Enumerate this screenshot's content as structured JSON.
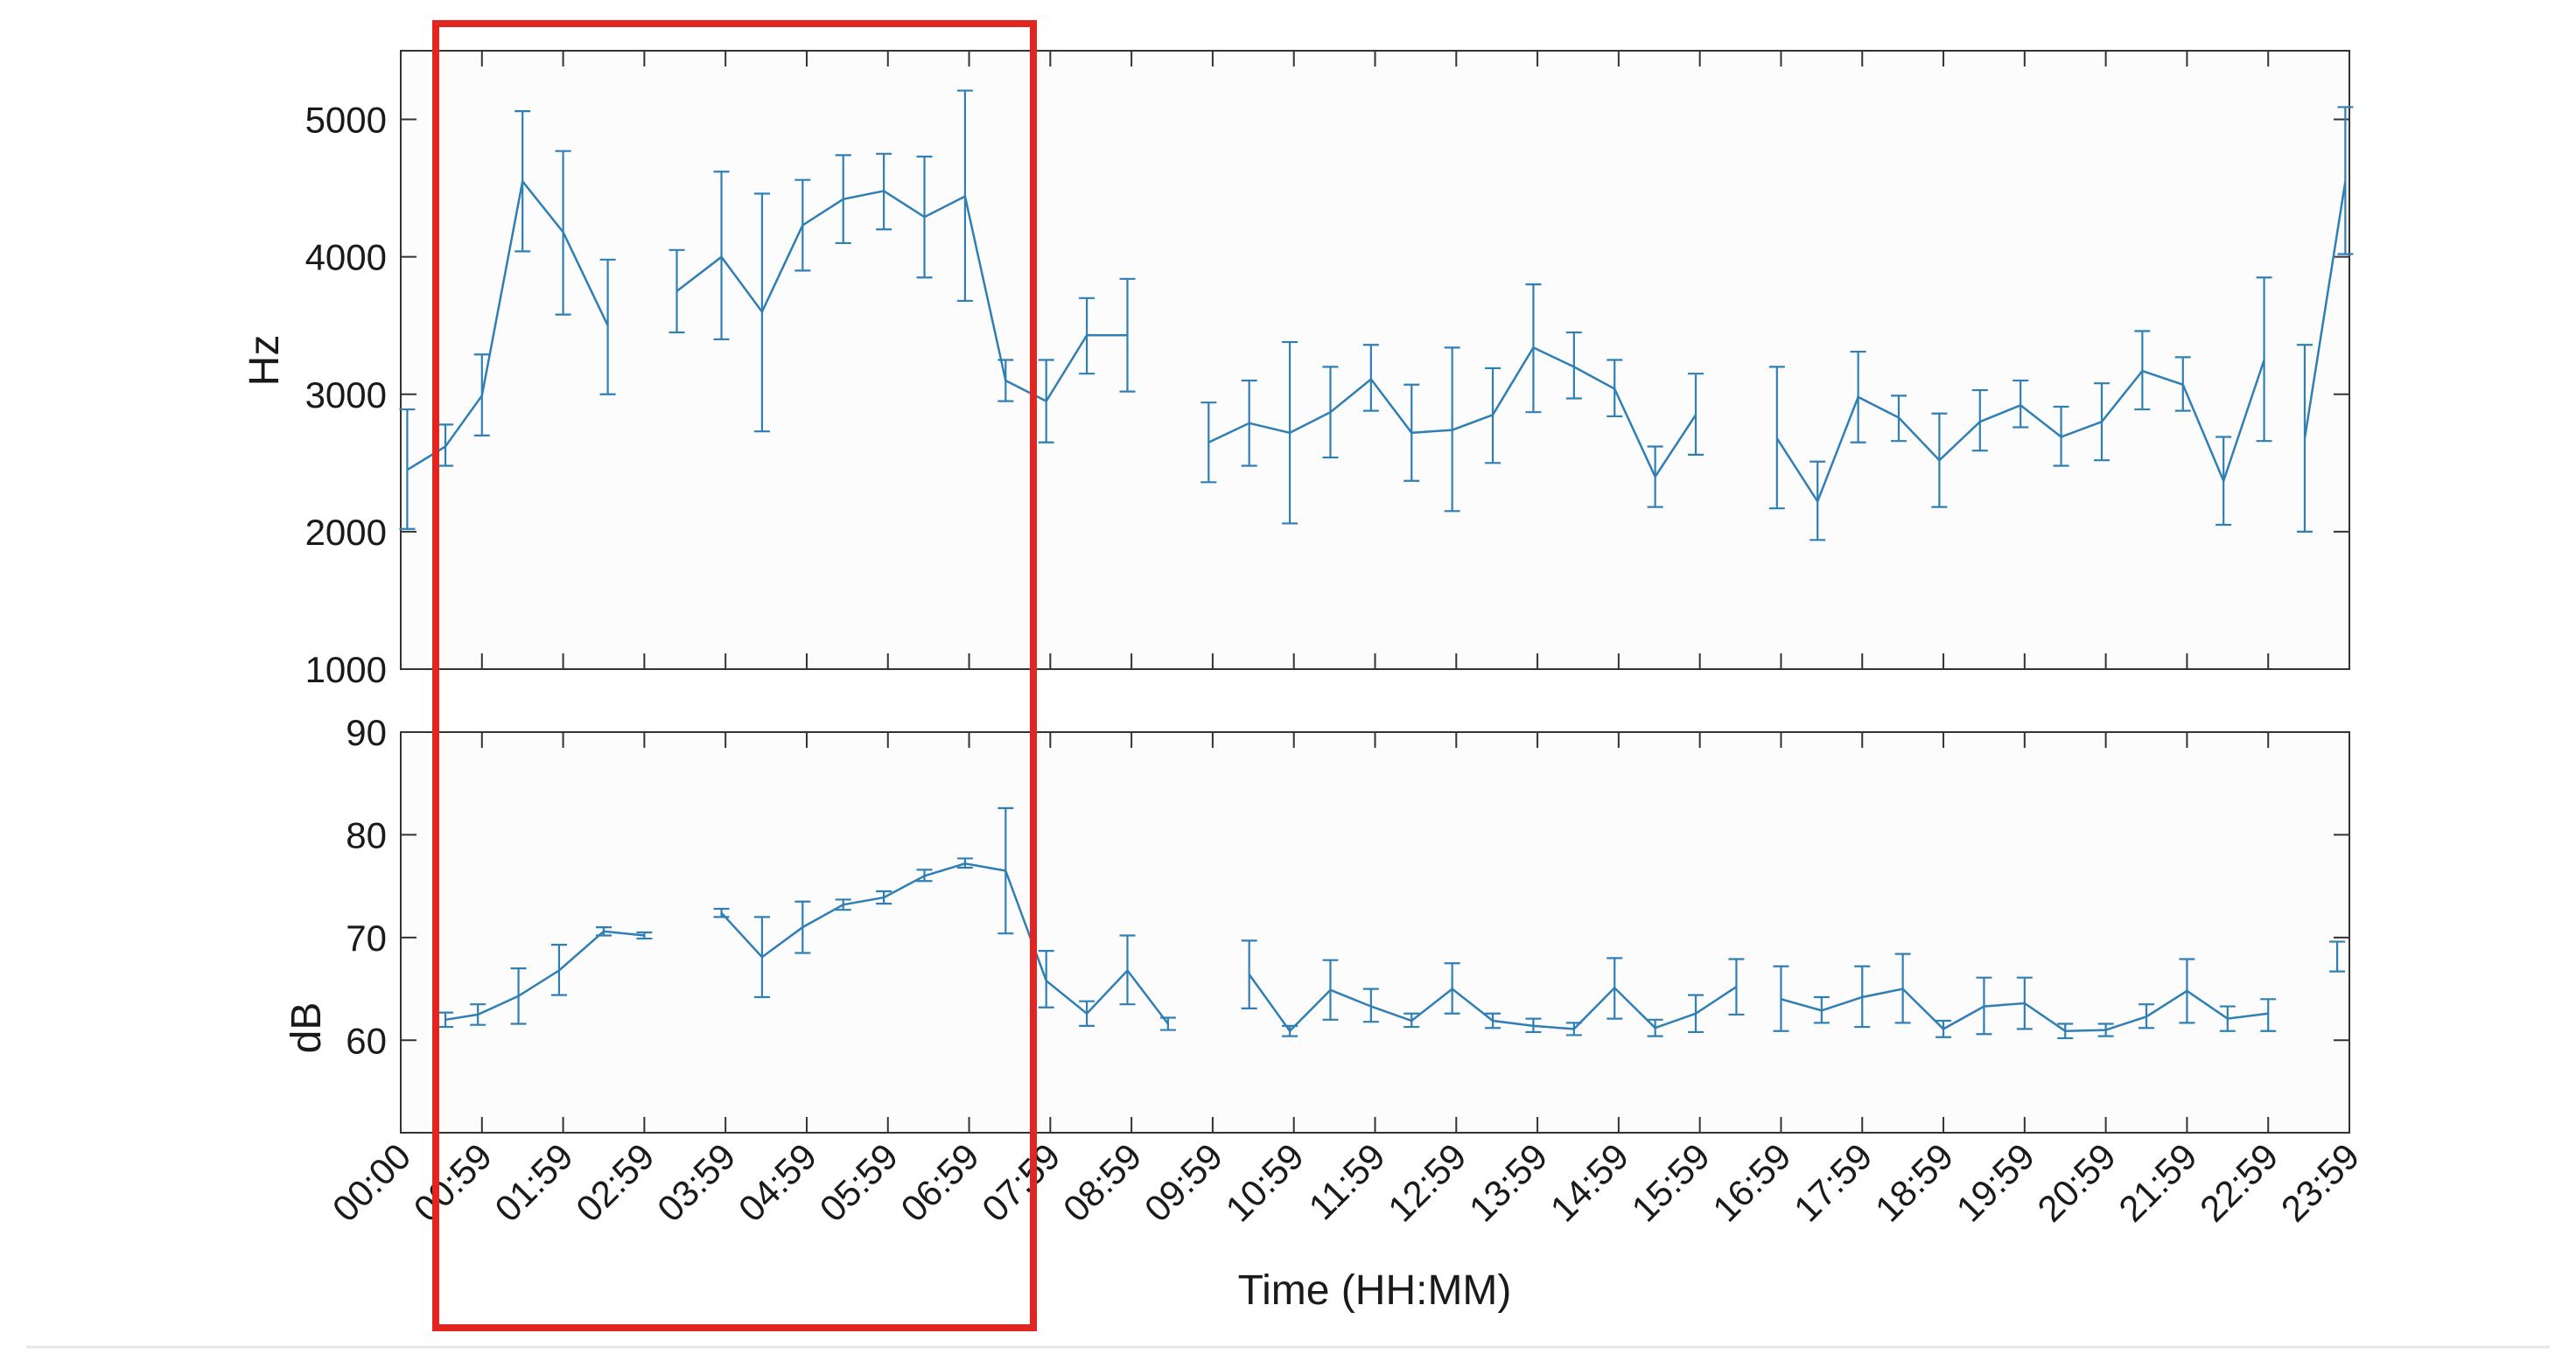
{
  "colors": {
    "series": "#2f7fb5",
    "highlight": "#e32522",
    "axis": "#333333",
    "background": "#fcfcfc"
  },
  "chart_data": [
    {
      "type": "line",
      "panel": "top",
      "xlabel": "",
      "ylabel": "Hz",
      "ylim": [
        1000,
        5500
      ],
      "yticks": [
        1000,
        2000,
        3000,
        4000,
        5000
      ],
      "xlim": [
        0,
        24
      ],
      "error_bars": true,
      "series": [
        {
          "segments": [
            [
              [
                0.08,
                2450,
                2020,
                2890
              ],
              [
                0.55,
                2620,
                2480,
                2780
              ],
              [
                1.0,
                2990,
                2700,
                3290
              ],
              [
                1.5,
                4550,
                4040,
                5060
              ],
              [
                2.0,
                4180,
                3580,
                4770
              ],
              [
                2.55,
                3500,
                3000,
                3980
              ]
            ],
            [
              [
                3.4,
                3750,
                3450,
                4050
              ],
              [
                3.95,
                4000,
                3400,
                4620
              ],
              [
                4.45,
                3600,
                2730,
                4460
              ],
              [
                4.95,
                4230,
                3900,
                4560
              ],
              [
                5.45,
                4420,
                4100,
                4740
              ],
              [
                5.95,
                4480,
                4200,
                4750
              ],
              [
                6.45,
                4290,
                3850,
                4730
              ],
              [
                6.95,
                4440,
                3680,
                5210
              ],
              [
                7.45,
                3100,
                2950,
                3250
              ],
              [
                7.95,
                2950,
                2650,
                3250
              ],
              [
                8.45,
                3430,
                3150,
                3700
              ],
              [
                8.95,
                3430,
                3020,
                3840
              ]
            ],
            [
              [
                9.95,
                2650,
                2360,
                2940
              ],
              [
                10.45,
                2790,
                2480,
                3100
              ],
              [
                10.95,
                2720,
                2060,
                3380
              ],
              [
                11.45,
                2870,
                2540,
                3200
              ],
              [
                11.95,
                3110,
                2880,
                3360
              ],
              [
                12.45,
                2720,
                2370,
                3070
              ],
              [
                12.95,
                2740,
                2150,
                3340
              ],
              [
                13.45,
                2850,
                2500,
                3190
              ],
              [
                13.95,
                3340,
                2870,
                3800
              ],
              [
                14.45,
                3200,
                2970,
                3450
              ],
              [
                14.95,
                3040,
                2840,
                3250
              ],
              [
                15.45,
                2400,
                2180,
                2620
              ],
              [
                15.95,
                2850,
                2560,
                3150
              ]
            ],
            [
              [
                16.95,
                2680,
                2170,
                3200
              ],
              [
                17.45,
                2220,
                1940,
                2510
              ],
              [
                17.95,
                2980,
                2650,
                3310
              ],
              [
                18.45,
                2830,
                2660,
                2990
              ],
              [
                18.95,
                2520,
                2180,
                2860
              ],
              [
                19.45,
                2800,
                2590,
                3030
              ],
              [
                19.95,
                2920,
                2760,
                3100
              ],
              [
                20.45,
                2690,
                2480,
                2910
              ],
              [
                20.95,
                2800,
                2520,
                3080
              ],
              [
                21.45,
                3170,
                2890,
                3460
              ],
              [
                21.95,
                3070,
                2880,
                3270
              ],
              [
                22.45,
                2370,
                2050,
                2690
              ],
              [
                22.95,
                3250,
                2660,
                3850
              ]
            ],
            [
              [
                23.45,
                2680,
                2000,
                3360
              ],
              [
                23.95,
                4550,
                4020,
                5090
              ]
            ]
          ]
        }
      ]
    },
    {
      "type": "line",
      "panel": "bottom",
      "xlabel": "Time (HH:MM)",
      "ylabel": "dB",
      "ylim": [
        51,
        90
      ],
      "yticks": [
        60,
        70,
        80,
        90
      ],
      "xlim": [
        0,
        24
      ],
      "error_bars": true,
      "xtick_labels": [
        "00:00",
        "00:59",
        "01:59",
        "02:59",
        "03:59",
        "04:59",
        "05:59",
        "06:59",
        "07:59",
        "08:59",
        "09:59",
        "10:59",
        "11:59",
        "12:59",
        "13:59",
        "14:59",
        "15:59",
        "16:59",
        "17:59",
        "18:59",
        "19:59",
        "20:59",
        "21:59",
        "22:59",
        "23:59"
      ],
      "series": [
        {
          "segments": [
            [
              [
                0.55,
                62.0,
                61.3,
                62.7
              ],
              [
                0.95,
                62.5,
                61.5,
                63.5
              ],
              [
                1.45,
                64.3,
                61.6,
                67.0
              ],
              [
                1.95,
                66.8,
                64.4,
                69.3
              ],
              [
                2.5,
                70.6,
                70.2,
                71.0
              ],
              [
                3.0,
                70.2,
                69.9,
                70.5
              ]
            ],
            [
              [
                3.95,
                72.4,
                72.0,
                72.8
              ],
              [
                4.45,
                68.1,
                64.2,
                72.0
              ],
              [
                4.95,
                71.0,
                68.5,
                73.5
              ],
              [
                5.45,
                73.2,
                72.7,
                73.7
              ],
              [
                5.95,
                73.9,
                73.3,
                74.5
              ],
              [
                6.45,
                76.0,
                75.5,
                76.6
              ],
              [
                6.95,
                77.2,
                76.8,
                77.7
              ],
              [
                7.45,
                76.5,
                70.4,
                82.6
              ],
              [
                7.95,
                65.8,
                63.2,
                68.7
              ],
              [
                8.45,
                62.6,
                61.4,
                63.8
              ],
              [
                8.95,
                66.8,
                63.5,
                70.2
              ],
              [
                9.45,
                61.6,
                61.0,
                62.2
              ]
            ],
            [
              [
                10.45,
                66.4,
                63.1,
                69.7
              ],
              [
                10.95,
                60.9,
                60.4,
                61.4
              ],
              [
                11.45,
                64.9,
                62.0,
                67.8
              ],
              [
                11.95,
                63.3,
                61.8,
                65.0
              ],
              [
                12.45,
                61.9,
                61.3,
                62.6
              ],
              [
                12.95,
                65.0,
                62.6,
                67.5
              ],
              [
                13.45,
                61.9,
                61.2,
                62.6
              ],
              [
                13.95,
                61.4,
                60.8,
                62.1
              ],
              [
                14.45,
                61.1,
                60.5,
                61.7
              ],
              [
                14.95,
                65.1,
                62.1,
                68.0
              ],
              [
                15.45,
                61.2,
                60.4,
                62.0
              ],
              [
                15.95,
                62.6,
                60.8,
                64.4
              ],
              [
                16.45,
                65.2,
                62.5,
                67.9
              ]
            ],
            [
              [
                17.0,
                64.0,
                60.9,
                67.2
              ],
              [
                17.5,
                62.9,
                61.7,
                64.2
              ],
              [
                18.0,
                64.2,
                61.3,
                67.2
              ],
              [
                18.5,
                65.0,
                61.7,
                68.4
              ],
              [
                19.0,
                61.1,
                60.3,
                61.9
              ],
              [
                19.5,
                63.3,
                60.6,
                66.1
              ],
              [
                20.0,
                63.6,
                61.1,
                66.1
              ],
              [
                20.5,
                60.9,
                60.2,
                61.6
              ],
              [
                21.0,
                61.0,
                60.4,
                61.6
              ],
              [
                21.5,
                62.3,
                61.2,
                63.5
              ],
              [
                22.0,
                64.8,
                61.7,
                67.9
              ],
              [
                22.5,
                62.1,
                60.9,
                63.3
              ],
              [
                23.0,
                62.6,
                60.9,
                64.0
              ]
            ],
            [
              [
                23.85,
                68.1,
                66.7,
                69.6
              ]
            ]
          ]
        }
      ]
    }
  ]
}
